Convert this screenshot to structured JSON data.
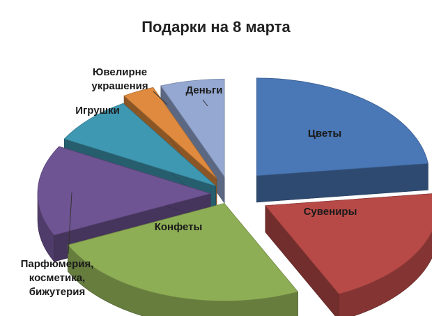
{
  "chart_data": {
    "type": "pie",
    "title": "Подарки на 8 марта",
    "style": "3d-exploded",
    "legend": "none",
    "slices": [
      {
        "label": "Цветы",
        "value": 23,
        "color": "#4a77b5"
      },
      {
        "label": "Сувениры",
        "value": 20,
        "color": "#b74a47"
      },
      {
        "label": "Конфеты",
        "value": 25,
        "color": "#8eae56"
      },
      {
        "label": "Парфюмерия, косметика, бижутерия",
        "value": 15,
        "color": "#6f5493"
      },
      {
        "label": "Игрушки",
        "value": 8,
        "color": "#3f98b2"
      },
      {
        "label": "Ювелирне украшения",
        "value": 3,
        "color": "#df8a3e"
      },
      {
        "label": "Деньги",
        "value": 6,
        "color": "#94a8d2"
      }
    ]
  }
}
